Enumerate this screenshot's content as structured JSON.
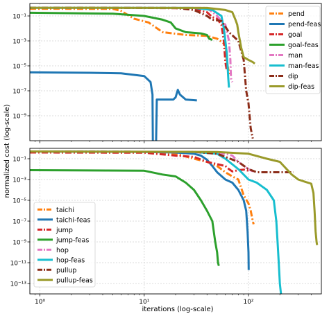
{
  "figure": {
    "ylabel": "normalized cost (log-scale)",
    "xlabel": "iterations (log-scale)"
  },
  "chart_data": [
    {
      "type": "line",
      "panel": "top",
      "xscale": "log",
      "yscale": "log",
      "xlim": [
        0.8,
        500
      ],
      "ylim": [
        1e-11,
        1
      ],
      "grid": true,
      "legend_placement": "top-right",
      "x_ticks": [
        {
          "v": 1,
          "label": "10⁰"
        },
        {
          "v": 10,
          "label": "10¹"
        },
        {
          "v": 100,
          "label": "10²"
        }
      ],
      "y_ticks": [
        {
          "v": 0.1,
          "label": "10⁻¹"
        },
        {
          "v": 0.001,
          "label": "10⁻³"
        },
        {
          "v": 1e-05,
          "label": "10⁻⁵"
        },
        {
          "v": 1e-07,
          "label": "10⁻⁷"
        },
        {
          "v": 1e-09,
          "label": "10⁻⁹"
        }
      ],
      "series": [
        {
          "name": "pend",
          "color": "#ff7f0e",
          "dash": "9,3,2,3",
          "points": [
            [
              0.8,
              0.38
            ],
            [
              5,
              0.37
            ],
            [
              6,
              0.25
            ],
            [
              8,
              0.06
            ],
            [
              11,
              0.03
            ],
            [
              15,
              0.005
            ],
            [
              25,
              0.003
            ],
            [
              40,
              0.0025
            ],
            [
              50,
              0.0015
            ],
            [
              60,
              0.0005
            ],
            [
              62,
              2e-05
            ],
            [
              65,
              3e-06
            ],
            [
              66,
              2e-06
            ]
          ]
        },
        {
          "name": "pend-feas",
          "color": "#1f77b4",
          "dash": "",
          "points": [
            [
              0.8,
              3e-06
            ],
            [
              3,
              2.8e-06
            ],
            [
              6,
              2.5e-06
            ],
            [
              10,
              1.5e-06
            ],
            [
              11.5,
              5e-07
            ],
            [
              12,
              5e-08
            ],
            [
              12.1,
              1e-11
            ],
            "break",
            [
              13,
              1e-11
            ],
            [
              13.2,
              2e-08
            ],
            [
              19,
              2e-08
            ],
            [
              20,
              3e-08
            ],
            [
              21,
              1.2e-07
            ],
            [
              22,
              5e-08
            ],
            [
              25,
              2e-08
            ],
            [
              32,
              1.7e-08
            ]
          ]
        },
        {
          "name": "goal",
          "color": "#d62728",
          "dash": "9,3,2,3",
          "points": [
            [
              0.8,
              0.45
            ],
            [
              10,
              0.44
            ],
            [
              20,
              0.42
            ],
            [
              30,
              0.4
            ],
            [
              35,
              0.25
            ],
            [
              40,
              0.2
            ],
            [
              45,
              0.08
            ],
            [
              50,
              0.06
            ],
            [
              55,
              0.02
            ],
            [
              58,
              0.001
            ],
            [
              60,
              2e-05
            ],
            [
              62,
              4e-06
            ]
          ]
        },
        {
          "name": "goal-feas",
          "color": "#2ca02c",
          "dash": "",
          "points": [
            [
              0.8,
              0.18
            ],
            [
              5,
              0.15
            ],
            [
              10,
              0.1
            ],
            [
              15,
              0.05
            ],
            [
              18,
              0.03
            ],
            [
              20,
              0.01
            ],
            [
              25,
              0.005
            ],
            [
              35,
              0.004
            ],
            [
              40,
              0.003
            ],
            [
              42,
              0.0015
            ],
            [
              45,
              0.0012
            ]
          ]
        },
        {
          "name": "man",
          "color": "#e377c2",
          "dash": "9,3,2,3",
          "points": [
            [
              0.8,
              0.45
            ],
            [
              40,
              0.44
            ],
            [
              50,
              0.1
            ],
            [
              55,
              0.04
            ],
            [
              60,
              0.02
            ],
            [
              65,
              0.001
            ],
            [
              67,
              3e-05
            ],
            [
              68,
              1e-06
            ],
            [
              70,
              5e-07
            ]
          ]
        },
        {
          "name": "man-feas",
          "color": "#17becf",
          "dash": "",
          "points": [
            [
              0.8,
              0.45
            ],
            [
              30,
              0.44
            ],
            [
              45,
              0.3
            ],
            [
              55,
              0.1
            ],
            [
              58,
              0.01
            ],
            [
              60,
              0.001
            ],
            [
              62,
              0.0001
            ],
            [
              63,
              1e-05
            ],
            [
              64,
              1e-06
            ],
            [
              65,
              1.8e-07
            ]
          ]
        },
        {
          "name": "dip",
          "color": "#8c2d19",
          "dash": "9,3,2,3",
          "points": [
            [
              0.8,
              0.45
            ],
            [
              20,
              0.44
            ],
            [
              30,
              0.3
            ],
            [
              40,
              0.1
            ],
            [
              45,
              0.05
            ],
            [
              55,
              0.04
            ],
            [
              65,
              0.005
            ],
            [
              80,
              0.001
            ],
            [
              90,
              3e-05
            ],
            [
              95,
              1e-07
            ],
            [
              100,
              1e-08
            ],
            [
              105,
              1e-10
            ],
            [
              110,
              1.5e-11
            ]
          ]
        },
        {
          "name": "dip-feas",
          "color": "#9a9a2a",
          "dash": "",
          "points": [
            [
              0.8,
              0.45
            ],
            [
              40,
              0.44
            ],
            [
              60,
              0.3
            ],
            [
              70,
              0.2
            ],
            [
              75,
              0.05
            ],
            [
              78,
              0.02
            ],
            [
              80,
              0.005
            ],
            [
              85,
              0.0003
            ],
            [
              90,
              5e-05
            ],
            [
              100,
              3e-05
            ],
            [
              110,
              2e-05
            ],
            [
              115,
              1.5e-05
            ]
          ]
        }
      ]
    },
    {
      "type": "line",
      "panel": "bottom",
      "xscale": "log",
      "yscale": "log",
      "xlim": [
        0.8,
        500
      ],
      "ylim": [
        1e-14,
        1
      ],
      "grid": true,
      "legend_placement": "bottom-left",
      "x_ticks": [
        {
          "v": 1,
          "label": "10⁰"
        },
        {
          "v": 10,
          "label": "10¹"
        },
        {
          "v": 100,
          "label": "10²"
        }
      ],
      "y_ticks": [
        {
          "v": 0.1,
          "label": "10⁻¹"
        },
        {
          "v": 0.001,
          "label": "10⁻³"
        },
        {
          "v": 1e-05,
          "label": "10⁻⁵"
        },
        {
          "v": 1e-07,
          "label": "10⁻⁷"
        },
        {
          "v": 1e-09,
          "label": "10⁻⁹"
        },
        {
          "v": 1e-11,
          "label": "10⁻¹¹"
        },
        {
          "v": 1e-13,
          "label": "10⁻¹³"
        }
      ],
      "series": [
        {
          "name": "taichi",
          "color": "#ff7f0e",
          "dash": "9,3,2,3",
          "points": [
            [
              0.8,
              0.5
            ],
            [
              10,
              0.45
            ],
            [
              20,
              0.3
            ],
            [
              30,
              0.1
            ],
            [
              40,
              0.05
            ],
            [
              50,
              0.02
            ],
            [
              60,
              0.005
            ],
            [
              70,
              0.002
            ],
            [
              80,
              0.001
            ],
            [
              90,
              3e-05
            ],
            [
              100,
              5e-06
            ],
            [
              105,
              1e-06
            ],
            [
              110,
              1e-07
            ],
            [
              112,
              5e-08
            ]
          ]
        },
        {
          "name": "taichi-feas",
          "color": "#1f77b4",
          "dash": "",
          "points": [
            [
              0.8,
              0.5
            ],
            [
              10,
              0.45
            ],
            [
              20,
              0.4
            ],
            [
              30,
              0.3
            ],
            [
              35,
              0.2
            ],
            [
              40,
              0.08
            ],
            [
              45,
              0.02
            ],
            [
              50,
              0.005
            ],
            [
              60,
              0.001
            ],
            [
              70,
              0.0005
            ],
            [
              80,
              0.0001
            ],
            [
              90,
              1e-05
            ],
            [
              95,
              1e-06
            ],
            [
              98,
              1e-08
            ],
            [
              100,
              1e-10
            ],
            [
              100.5,
              2e-12
            ]
          ]
        },
        {
          "name": "jump",
          "color": "#d62728",
          "dash": "9,3,2,3",
          "points": [
            [
              0.8,
              0.4
            ],
            [
              10,
              0.38
            ],
            [
              20,
              0.2
            ],
            [
              30,
              0.15
            ],
            [
              40,
              0.05
            ],
            [
              50,
              0.03
            ],
            [
              60,
              0.02
            ],
            [
              65,
              0.01
            ],
            [
              70,
              0.006
            ],
            [
              80,
              0.008
            ],
            [
              90,
              0.009
            ],
            [
              100,
              0.007
            ]
          ]
        },
        {
          "name": "jump-feas",
          "color": "#2ca02c",
          "dash": "",
          "points": [
            [
              0.8,
              0.008
            ],
            [
              10,
              0.007
            ],
            [
              15,
              0.003
            ],
            [
              20,
              0.002
            ],
            [
              25,
              0.0005
            ],
            [
              30,
              0.0001
            ],
            [
              35,
              1e-05
            ],
            [
              40,
              1e-06
            ],
            [
              45,
              1e-07
            ],
            [
              48,
              1e-09
            ],
            [
              50,
              1e-10
            ],
            [
              51,
              1e-11
            ],
            [
              52,
              5e-12
            ]
          ]
        },
        {
          "name": "hop",
          "color": "#e377c2",
          "dash": "9,3,2,3",
          "points": [
            [
              0.8,
              0.5
            ],
            [
              30,
              0.45
            ],
            [
              60,
              0.3
            ],
            [
              70,
              0.2
            ],
            [
              80,
              0.05
            ],
            [
              90,
              0.02
            ],
            [
              100,
              0.01
            ],
            [
              110,
              0.006
            ]
          ]
        },
        {
          "name": "hop-feas",
          "color": "#17becf",
          "dash": "",
          "points": [
            [
              0.8,
              0.5
            ],
            [
              30,
              0.45
            ],
            [
              50,
              0.3
            ],
            [
              60,
              0.1
            ],
            [
              80,
              0.01
            ],
            [
              100,
              0.001
            ],
            [
              120,
              0.0005
            ],
            [
              150,
              0.0001
            ],
            [
              175,
              1e-05
            ],
            [
              185,
              1e-07
            ],
            [
              190,
              1e-09
            ],
            [
              195,
              1e-11
            ],
            [
              200,
              1e-13
            ],
            [
              205,
              1e-14
            ]
          ]
        },
        {
          "name": "pullup",
          "color": "#8c2d19",
          "dash": "9,3,2,3",
          "points": [
            [
              0.8,
              0.5
            ],
            [
              30,
              0.45
            ],
            [
              50,
              0.3
            ],
            [
              80,
              0.05
            ],
            [
              100,
              0.01
            ],
            [
              120,
              0.005
            ],
            [
              150,
              0.005
            ],
            [
              200,
              0.005
            ],
            [
              270,
              0.005
            ]
          ]
        },
        {
          "name": "pullup-feas",
          "color": "#9a9a2a",
          "dash": "",
          "points": [
            [
              0.8,
              0.5
            ],
            [
              50,
              0.45
            ],
            [
              100,
              0.3
            ],
            [
              150,
              0.1
            ],
            [
              200,
              0.05
            ],
            [
              260,
              0.003
            ],
            [
              300,
              0.001
            ],
            [
              350,
              0.0006
            ],
            [
              400,
              0.0004
            ],
            [
              420,
              5e-05
            ],
            [
              430,
              1e-06
            ],
            [
              440,
              1e-08
            ],
            [
              450,
              1e-09
            ],
            [
              455,
              5e-10
            ]
          ]
        }
      ]
    }
  ]
}
